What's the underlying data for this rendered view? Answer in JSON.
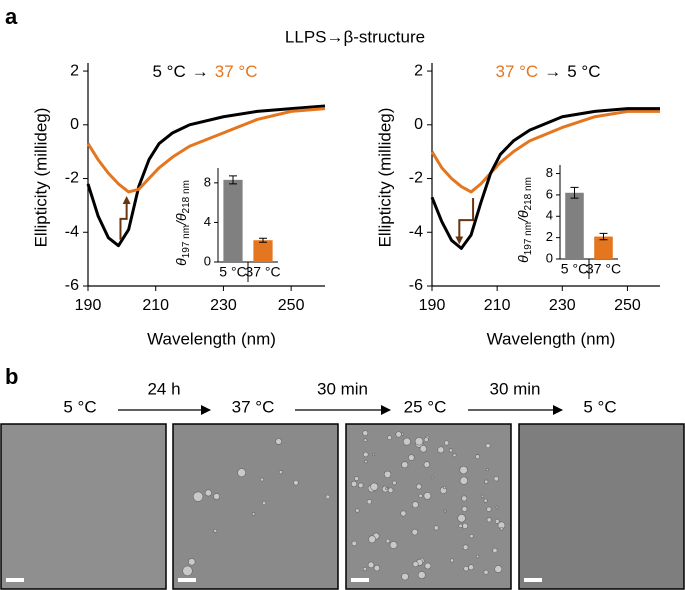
{
  "panel_labels": [
    "a",
    "b"
  ],
  "figure_title": "LLPS→β-structure",
  "chart_data": [
    {
      "type": "line",
      "legend_separator": "→",
      "xlabel": "Wavelength (nm)",
      "ylabel": "Ellipticity (millideg)",
      "x": [
        190,
        193,
        196,
        199,
        202,
        205,
        208,
        211,
        215,
        220,
        230,
        240,
        250,
        260
      ],
      "series": [
        {
          "name": "5 °C",
          "color": "#000000",
          "values": [
            -2.2,
            -3.4,
            -4.2,
            -4.5,
            -3.9,
            -2.3,
            -1.3,
            -0.7,
            -0.3,
            0,
            0.3,
            0.5,
            0.6,
            0.7
          ]
        },
        {
          "name": "37 °C",
          "color": "#e3761f",
          "values": [
            -0.7,
            -1.3,
            -1.8,
            -2.2,
            -2.5,
            -2.4,
            -2.0,
            -1.6,
            -1.2,
            -0.8,
            -0.3,
            0.2,
            0.5,
            0.6
          ]
        }
      ],
      "xlim": [
        190,
        260
      ],
      "xticks": [
        190,
        210,
        230,
        250
      ],
      "ylim": [
        -6,
        2.3
      ],
      "yticks": [
        -6,
        -4,
        -2,
        0,
        2
      ]
    },
    {
      "type": "line",
      "legend_separator": "→",
      "xlabel": "Wavelength (nm)",
      "ylabel": "Ellipticity (millideg)",
      "x": [
        190,
        193,
        196,
        199,
        202,
        205,
        208,
        211,
        215,
        220,
        230,
        240,
        250,
        260
      ],
      "series": [
        {
          "name": "37 °C",
          "color": "#e3761f",
          "values": [
            -1.0,
            -1.6,
            -2.0,
            -2.3,
            -2.5,
            -2.2,
            -1.8,
            -1.4,
            -1.0,
            -0.6,
            -0.1,
            0.3,
            0.5,
            0.5
          ]
        },
        {
          "name": "5 °C",
          "color": "#000000",
          "values": [
            -2.7,
            -3.6,
            -4.3,
            -4.6,
            -4.1,
            -2.9,
            -1.8,
            -1.1,
            -0.6,
            -0.2,
            0.3,
            0.5,
            0.6,
            0.6
          ]
        }
      ],
      "xlim": [
        190,
        260
      ],
      "xticks": [
        190,
        210,
        230,
        250
      ],
      "ylim": [
        -6,
        2.3
      ],
      "yticks": [
        -6,
        -4,
        -2,
        0,
        2
      ]
    },
    {
      "type": "bar",
      "categories": [
        "5 °C",
        "37 °C"
      ],
      "values": [
        8.3,
        2.2
      ],
      "errors": [
        0.4,
        0.2
      ],
      "colors": [
        "#808080",
        "#e3761f"
      ],
      "label_colors": [
        "#000000",
        "#e3761f"
      ],
      "ylabel_parts": [
        "θ",
        "197 nm",
        "/θ",
        "218 nm"
      ],
      "ylim": [
        0,
        9.5
      ],
      "yticks": [
        0,
        4,
        8
      ]
    },
    {
      "type": "bar",
      "categories": [
        "5 °C",
        "37 °C"
      ],
      "values": [
        6.2,
        2.1
      ],
      "errors": [
        0.5,
        0.3
      ],
      "colors": [
        "#808080",
        "#e3761f"
      ],
      "label_colors": [
        "#000000",
        "#e3761f"
      ],
      "ylabel_parts": [
        "θ",
        "197 nm",
        "/θ",
        "218 nm"
      ],
      "ylim": [
        0,
        8.8
      ],
      "yticks": [
        0,
        2,
        4,
        6,
        8
      ]
    }
  ],
  "timeline": {
    "states": [
      "5 °C",
      "37 °C",
      "25 °C",
      "5 °C"
    ],
    "durations": [
      "24 h",
      "30 min",
      "30 min"
    ]
  }
}
